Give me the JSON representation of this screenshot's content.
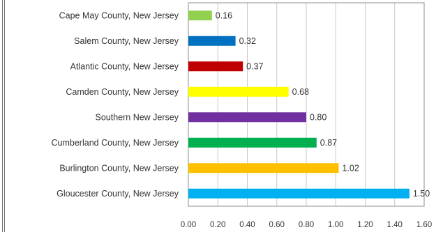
{
  "chart_data": {
    "type": "bar",
    "orientation": "horizontal",
    "title": "",
    "xlabel": "",
    "ylabel": "",
    "categories": [
      "Cape May County, New Jersey",
      "Salem County, New Jersey",
      "Atlantic County, New Jersey",
      "Camden County, New Jersey",
      "Southern New Jersey",
      "Cumberland County, New Jersey",
      "Burlington County, New Jersey",
      "Gloucester County, New Jersey"
    ],
    "values": [
      0.16,
      0.32,
      0.37,
      0.68,
      0.8,
      0.87,
      1.02,
      1.5
    ],
    "value_labels": [
      "0.16",
      "0.32",
      "0.37",
      "0.68",
      "0.80",
      "0.87",
      "1.02",
      "1.50"
    ],
    "colors": [
      "#92d050",
      "#0070c0",
      "#c00000",
      "#ffff00",
      "#7030a0",
      "#00b050",
      "#ffc000",
      "#00b0f0"
    ],
    "xlim": [
      0,
      1.6
    ],
    "xticks": [
      "0.00",
      "0.20",
      "0.40",
      "0.60",
      "0.80",
      "1.00",
      "1.20",
      "1.40",
      "1.60"
    ],
    "grid": true,
    "legend": "none"
  }
}
